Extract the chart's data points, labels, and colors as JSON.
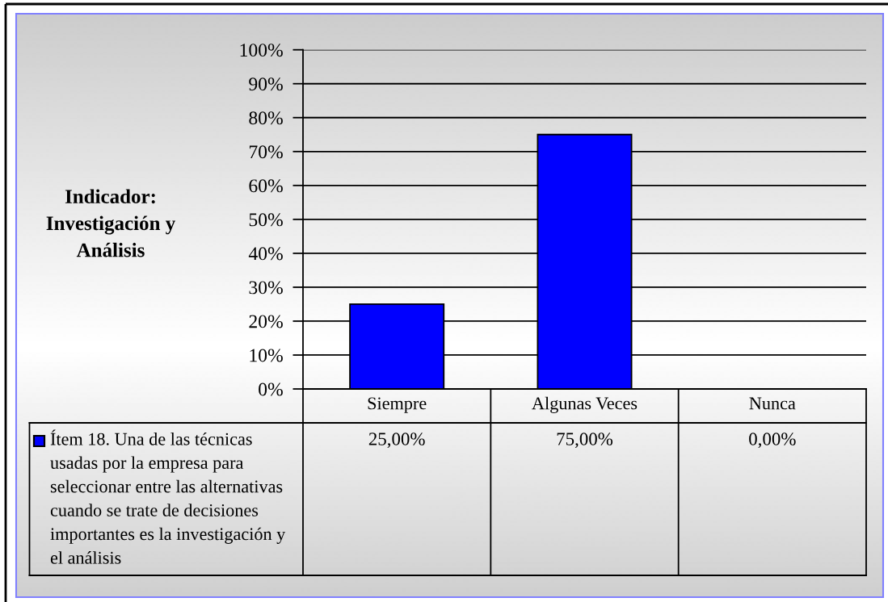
{
  "chart_data": {
    "type": "bar",
    "ylabel": "Indicador:\nInvestigación y\nAnálisis",
    "categories": [
      "Siempre",
      "Algunas Veces",
      "Nunca"
    ],
    "series": [
      {
        "name": "Ítem 18. Una de las técnicas\nusadas por la empresa para\nseleccionar entre las alternativas\ncuando se trate de decisiones\nimportantes es la investigación y\nel análisis",
        "color": "#0000ff",
        "values": [
          25,
          75,
          0
        ],
        "value_labels": [
          "25,00%",
          "75,00%",
          "0,00%"
        ]
      }
    ],
    "ylim": [
      0,
      100
    ],
    "yticks": [
      {
        "value": 0,
        "label": "0%"
      },
      {
        "value": 10,
        "label": "10%"
      },
      {
        "value": 20,
        "label": "20%"
      },
      {
        "value": 30,
        "label": "30%"
      },
      {
        "value": 40,
        "label": "40%"
      },
      {
        "value": 50,
        "label": "50%"
      },
      {
        "value": 60,
        "label": "60%"
      },
      {
        "value": 70,
        "label": "70%"
      },
      {
        "value": 80,
        "label": "80%"
      },
      {
        "value": 90,
        "label": "90%"
      },
      {
        "value": 100,
        "label": "100%"
      }
    ],
    "grid": "y",
    "legend": "bottom left"
  }
}
